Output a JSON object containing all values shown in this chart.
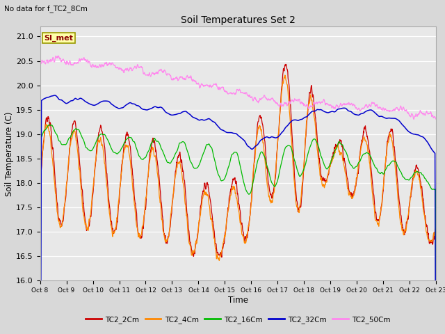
{
  "title": "Soil Temperatures Set 2",
  "subtitle": "No data for f_TC2_8Cm",
  "xlabel": "Time",
  "ylabel": "Soil Temperature (C)",
  "ylim": [
    16.0,
    21.2
  ],
  "annotation": "SI_met",
  "fig_facecolor": "#d8d8d8",
  "plot_facecolor": "#e8e8e8",
  "colors": {
    "TC2_2Cm": "#cc0000",
    "TC2_4Cm": "#ff8800",
    "TC2_16Cm": "#00bb00",
    "TC2_32Cm": "#0000cc",
    "TC2_50Cm": "#ff88ee"
  },
  "x_tick_labels": [
    "Oct 8",
    "Oct 9",
    "Oct 10",
    "Oct 11",
    "Oct 12",
    "Oct 13",
    "Oct 14",
    "Oct 15",
    "Oct 16",
    "Oct 17",
    "Oct 18",
    "Oct 19",
    "Oct 20",
    "Oct 21",
    "Oct 22",
    "Oct 23"
  ],
  "yticks": [
    16.0,
    16.5,
    17.0,
    17.5,
    18.0,
    18.5,
    19.0,
    19.5,
    20.0,
    20.5,
    21.0
  ],
  "legend_labels": [
    "TC2_2Cm",
    "TC2_4Cm",
    "TC2_16Cm",
    "TC2_32Cm",
    "TC2_50Cm"
  ]
}
